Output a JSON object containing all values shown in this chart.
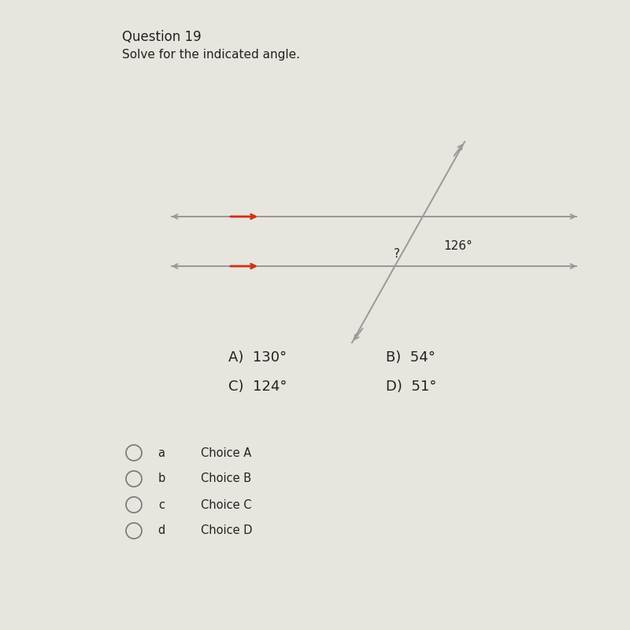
{
  "background_color": "#e8e4de",
  "title": "Question 19",
  "subtitle": "Solve for the indicated angle.",
  "title_fontsize": 12,
  "subtitle_fontsize": 11,
  "line_color": "#999999",
  "line_width": 1.4,
  "arrow_color": "#cc3311",
  "text_color": "#222222",
  "angle_label_126": "126°",
  "angle_label_q": "?",
  "choice_A": "A)  130°",
  "choice_B": "B)  54°",
  "choice_C": "C)  124°",
  "choice_D": "D)  51°",
  "choices_fontsize": 13,
  "radio_labels": [
    "a",
    "b",
    "c",
    "d"
  ],
  "radio_choice_labels": [
    "Choice A",
    "Choice B",
    "Choice C",
    "Choice D"
  ],
  "radio_fontsize": 10.5
}
